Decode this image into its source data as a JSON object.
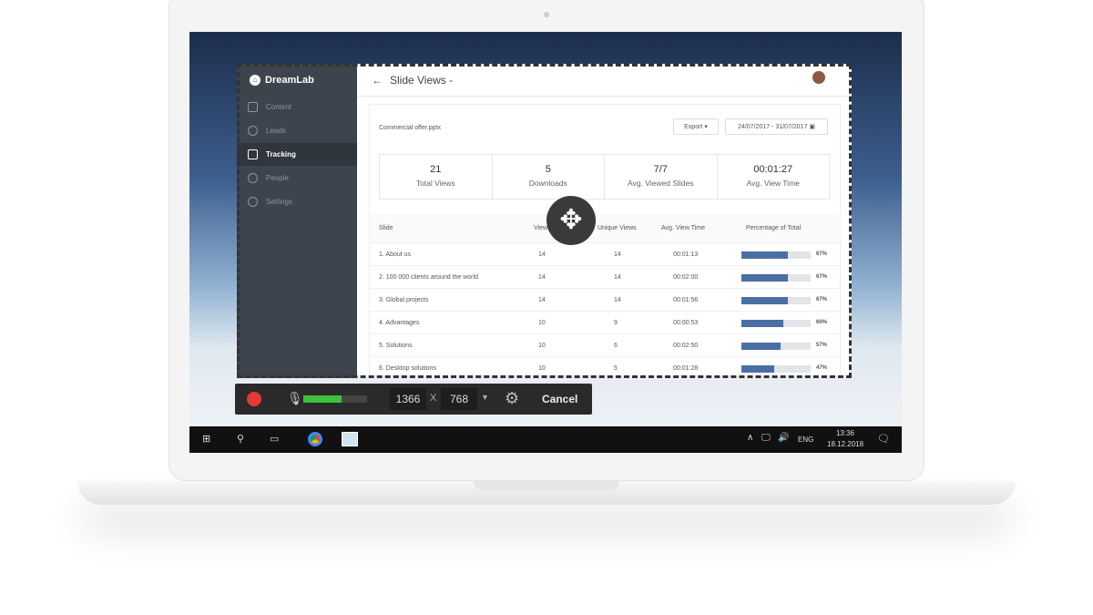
{
  "app": {
    "brand": "DreamLab",
    "title": "Slide Views -",
    "back_icon": "arrow-left-icon"
  },
  "sidebar": {
    "items": [
      {
        "label": "Content",
        "icon": "file-icon"
      },
      {
        "label": "Leads",
        "icon": "user-circle-icon"
      },
      {
        "label": "Tracking",
        "icon": "bar-chart-icon",
        "active": true
      },
      {
        "label": "People",
        "icon": "people-icon"
      },
      {
        "label": "Settings",
        "icon": "gear-icon"
      }
    ]
  },
  "content": {
    "file": "Commercial offer.pptx",
    "export_label": "Export",
    "date_range": "24/07/2017 - 31/07/2017",
    "stats": [
      {
        "value": "21",
        "label": "Total Views"
      },
      {
        "value": "5",
        "label": "Downloads"
      },
      {
        "value": "7/7",
        "label": "Avg. Viewed Slides"
      },
      {
        "value": "00:01:27",
        "label": "Avg. View Time"
      }
    ],
    "columns": [
      "Slide",
      "Views",
      "Unique Views",
      "Avg. View Time",
      "Percentage of Total"
    ],
    "rows": [
      {
        "slide": "1. About us",
        "views": "14",
        "unique": "14",
        "time": "00:01:13",
        "pct": 67,
        "pct_label": "67%"
      },
      {
        "slide": "2. 100 000 clients around the world",
        "views": "14",
        "unique": "14",
        "time": "00:02:00",
        "pct": 67,
        "pct_label": "67%"
      },
      {
        "slide": "3. Global projects",
        "views": "14",
        "unique": "14",
        "time": "00:01:56",
        "pct": 67,
        "pct_label": "67%"
      },
      {
        "slide": "4. Advantages",
        "views": "10",
        "unique": "9",
        "time": "00:00:53",
        "pct": 60,
        "pct_label": "60%"
      },
      {
        "slide": "5. Solutions",
        "views": "10",
        "unique": "6",
        "time": "00:02:50",
        "pct": 57,
        "pct_label": "57%"
      },
      {
        "slide": "6. Desktop solutions",
        "views": "10",
        "unique": "5",
        "time": "00:01:28",
        "pct": 47,
        "pct_label": "47%"
      }
    ],
    "bar_color": "#4a6fa5"
  },
  "recorder": {
    "width": "1366",
    "x": "X",
    "height": "768",
    "cancel": "Cancel",
    "mic_level": 0.6,
    "record_color": "#e53935"
  },
  "taskbar": {
    "lang": "ENG",
    "time": "13:36",
    "date": "18.12.2018"
  }
}
